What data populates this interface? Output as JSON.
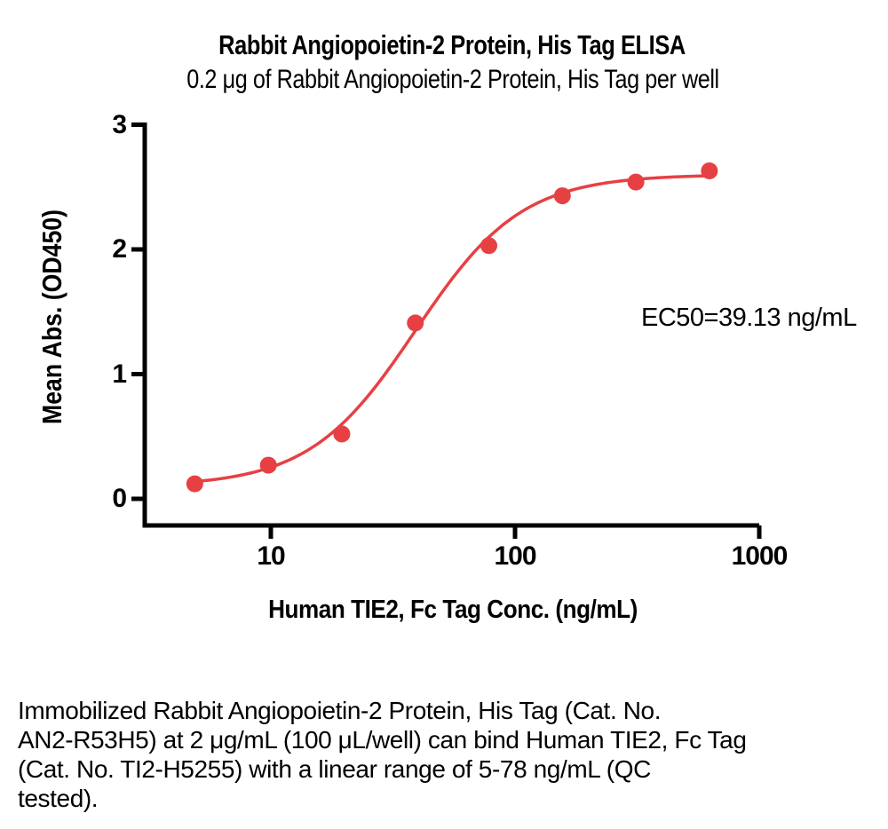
{
  "title": "Rabbit Angiopoietin-2 Protein, His Tag ELISA",
  "subtitle": "0.2 μg of Rabbit Angiopoietin-2 Protein, His Tag per well",
  "chart_data": {
    "type": "scatter",
    "x": [
      4.88,
      9.77,
      19.53,
      39.06,
      78.13,
      156.25,
      312.5,
      625
    ],
    "y": [
      0.12,
      0.27,
      0.52,
      1.41,
      2.03,
      2.43,
      2.54,
      2.63
    ],
    "x_scale": "log10",
    "xlabel": "Human TIE2, Fc Tag Conc. (ng/mL)",
    "ylabel": "Mean Abs. (OD450)",
    "x_ticks": [
      10,
      100,
      1000
    ],
    "y_ticks": [
      0,
      1,
      2,
      3
    ],
    "ylim": [
      0,
      3
    ],
    "xlim": [
      3.1,
      1000
    ],
    "grid": false,
    "legend": "none",
    "annotation": "EC50=39.13 ng/mL",
    "curve_fit": {
      "model": "4PL sigmoidal",
      "bottom": 0.1,
      "top": 2.6,
      "ec50": 39.13,
      "hill": 2.0
    },
    "point_color": "#e74043",
    "line_color": "#e74043",
    "axis_color": "#000000"
  },
  "caption": {
    "lines": [
      "Immobilized Rabbit Angiopoietin-2 Protein, His Tag (Cat. No.",
      "AN2-R53H5) at 2 μg/mL (100 μL/well) can bind Human TIE2, Fc Tag",
      "(Cat. No. TI2-H5255) with a linear range of 5-78 ng/mL (QC",
      "tested)."
    ]
  }
}
